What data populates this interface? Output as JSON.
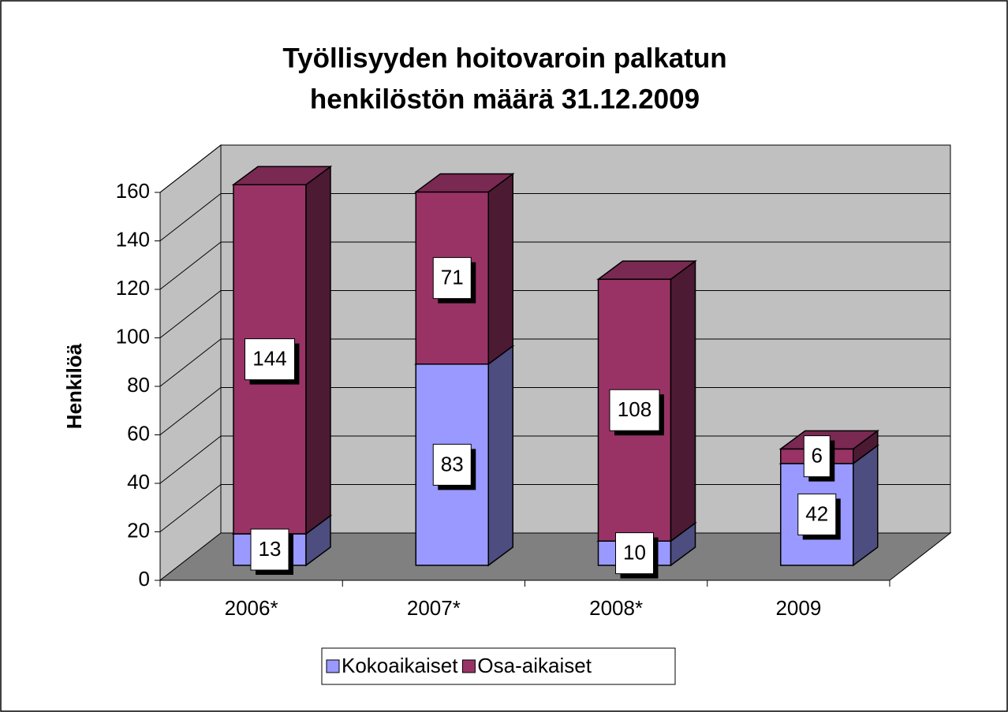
{
  "chart_data": {
    "type": "bar3d_stacked",
    "title": [
      "Työllisyyden hoitovaroin palkatun",
      "henkilöstön määrä 31.12.2009"
    ],
    "y_label": "Henkilöä",
    "categories": [
      "2006*",
      "2007*",
      "2008*",
      "2009"
    ],
    "series": [
      {
        "name": "Kokoaikaiset",
        "color": "#9999ff",
        "values": [
          13,
          83,
          10,
          42
        ]
      },
      {
        "name": "Osa-aikaiset",
        "color": "#993366",
        "values": [
          144,
          71,
          108,
          6
        ]
      }
    ],
    "ylim": [
      0,
      160
    ],
    "yticks": [
      0,
      20,
      40,
      60,
      80,
      100,
      120,
      140,
      160
    ],
    "grid": true,
    "legend": "bottom"
  }
}
